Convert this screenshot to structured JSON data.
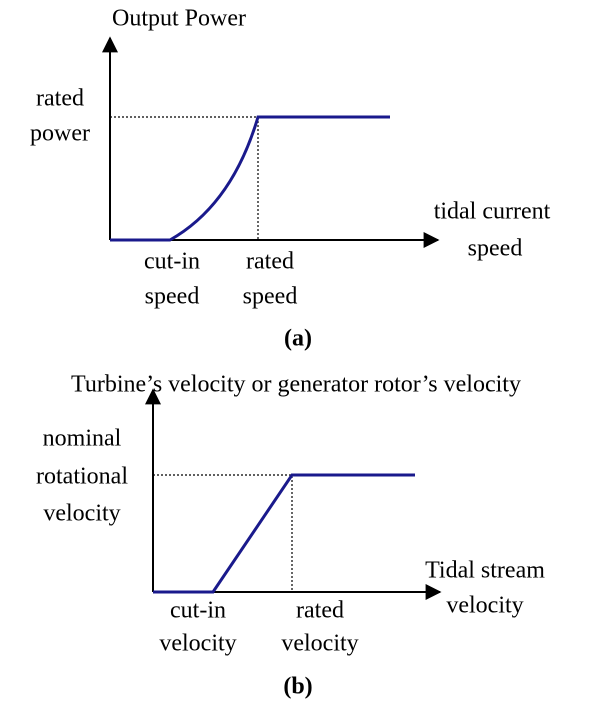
{
  "panel_a": {
    "y_axis_label": "Output Power",
    "y_marker": [
      "rated",
      "power"
    ],
    "x_axis_label": [
      "tidal current",
      "speed"
    ],
    "x_markers": [
      [
        "cut-in",
        "speed"
      ],
      [
        "rated",
        "speed"
      ]
    ],
    "caption": "(a)"
  },
  "panel_b": {
    "y_axis_label": "Turbine’s velocity or generator rotor’s velocity",
    "y_marker": [
      "nominal",
      "rotational",
      "velocity"
    ],
    "x_axis_label": [
      "Tidal stream",
      "velocity"
    ],
    "x_markers": [
      [
        "cut-in",
        "velocity"
      ],
      [
        "rated",
        "velocity"
      ]
    ],
    "caption": "(b)"
  }
}
